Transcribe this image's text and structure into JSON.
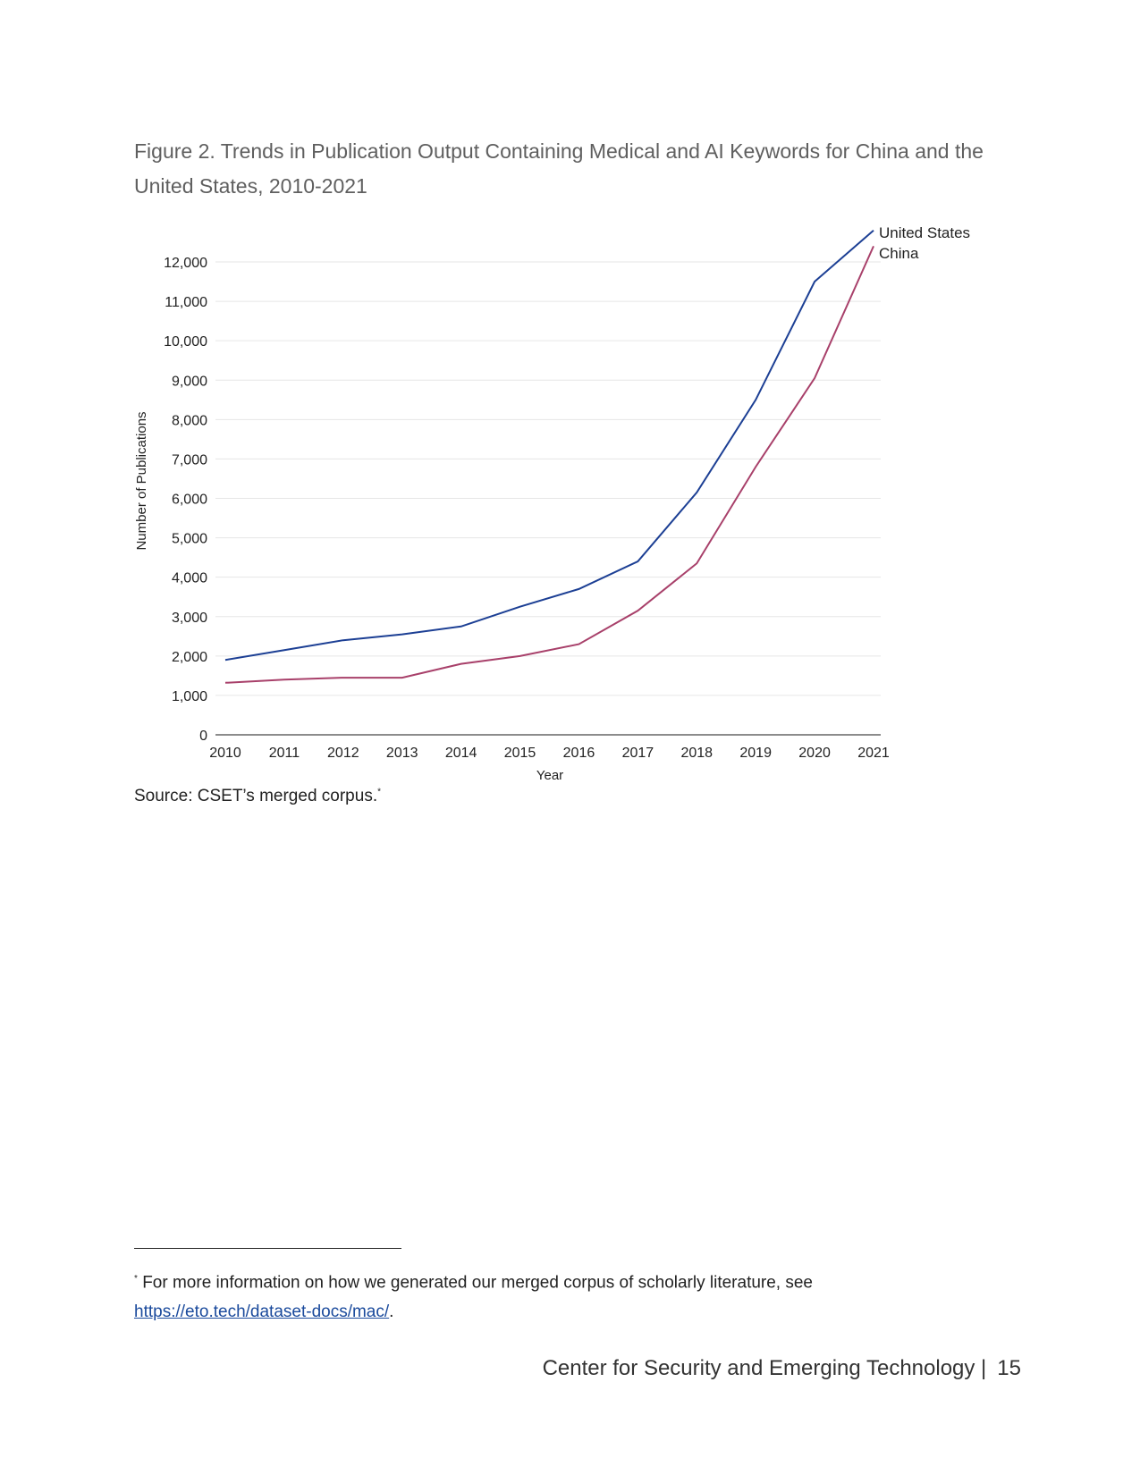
{
  "title": "Figure 2. Trends in Publication Output Containing Medical and AI Keywords for China and the United States, 2010-2021",
  "source": "Source: CSET’s merged corpus.",
  "source_marker": "*",
  "footnote": {
    "marker": "*",
    "text": "For more information on how we generated our merged corpus of scholarly literature, see",
    "link": "https://eto.tech/dataset-docs/mac/",
    "after": "."
  },
  "footer": {
    "org": "Center for Security and Emerging Technology |",
    "page": "15"
  },
  "chart_data": {
    "type": "line",
    "title": "",
    "xlabel": "Year",
    "ylabel": "Number of Publications",
    "x": [
      "2010",
      "2011",
      "2012",
      "2013",
      "2014",
      "2015",
      "2016",
      "2017",
      "2018",
      "2019",
      "2020",
      "2021"
    ],
    "yticks": [
      "0",
      "1,000",
      "2,000",
      "3,000",
      "4,000",
      "5,000",
      "6,000",
      "7,000",
      "8,000",
      "9,000",
      "10,000",
      "11,000",
      "12,000"
    ],
    "ylim": [
      0,
      12000
    ],
    "grid": true,
    "legend_placement": "line-end labels, top-right",
    "series": [
      {
        "name": "United States",
        "color": "#1c3f94",
        "values": [
          1900,
          2150,
          2400,
          2550,
          2750,
          3250,
          3700,
          4400,
          6150,
          8500,
          11500,
          12800
        ]
      },
      {
        "name": "China",
        "color": "#a8406a",
        "values": [
          1320,
          1400,
          1450,
          1450,
          1800,
          2000,
          2300,
          3150,
          4350,
          6800,
          9050,
          12400
        ]
      }
    ]
  }
}
